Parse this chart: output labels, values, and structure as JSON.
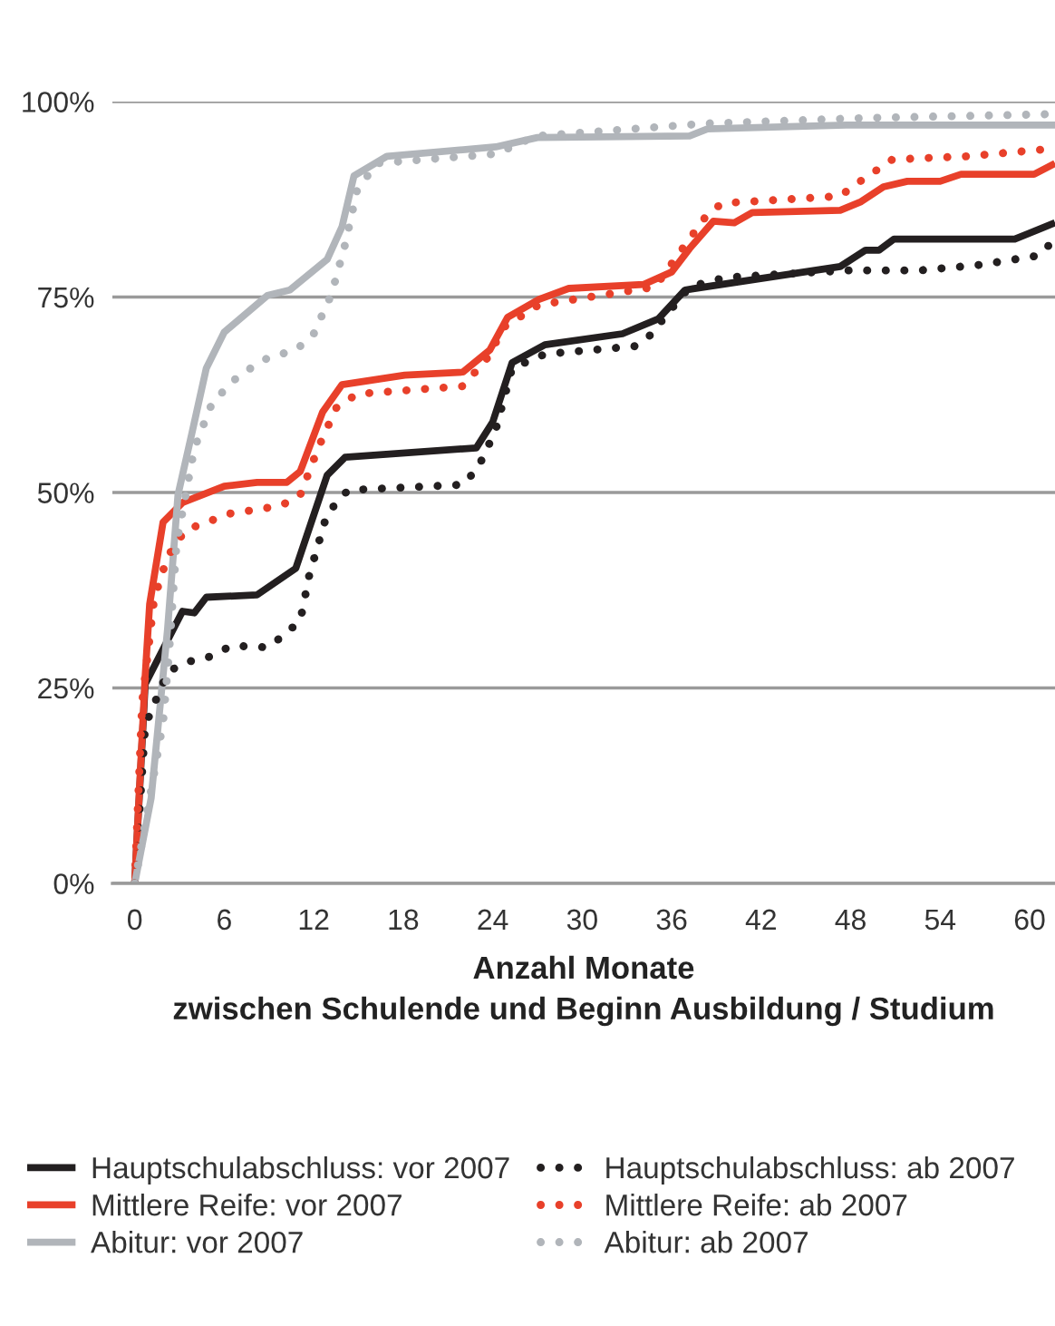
{
  "chart_data": {
    "type": "line",
    "xlabel": "Anzahl Monate\nzwischen Schulende und Beginn Ausbildung / Studium",
    "xlim": [
      -1.5,
      61.7
    ],
    "xticks": [
      0,
      6,
      12,
      18,
      24,
      30,
      36,
      42,
      48,
      54,
      60
    ],
    "ylim": [
      0,
      100
    ],
    "yticks": [
      {
        "value": 0,
        "label": "0%"
      },
      {
        "value": 25,
        "label": "25%"
      },
      {
        "value": 50,
        "label": "50%"
      },
      {
        "value": 75,
        "label": "75%"
      },
      {
        "value": 100,
        "label": "100%"
      }
    ],
    "grid": "y",
    "legend": "bottom",
    "marker": "none",
    "series": [
      {
        "name": "Hauptschulabschluss: vor 2007",
        "color": "#231f20",
        "line_style": "solid",
        "x": [
          0,
          0.7,
          3.2,
          4,
          4.8,
          8.2,
          10.8,
          12.9,
          14.1,
          22.9,
          24,
          25.3,
          27.5,
          32.7,
          35.1,
          36.9,
          47.3,
          49,
          49.9,
          50.9,
          59,
          61.7
        ],
        "values": [
          0,
          25.5,
          34.8,
          34.6,
          36.6,
          36.9,
          40.3,
          52.2,
          54.5,
          55.7,
          59,
          66.6,
          68.9,
          70.3,
          72.2,
          75.9,
          78.9,
          81,
          81,
          82.4,
          82.4,
          84.5
        ]
      },
      {
        "name": "Mittlere Reife: vor 2007",
        "color": "#e8402a",
        "line_style": "solid",
        "x": [
          0,
          0.7,
          1,
          1.9,
          3.2,
          6,
          8.2,
          10.2,
          11.1,
          12.6,
          13.9,
          18.1,
          22,
          23.8,
          25,
          27.1,
          29.1,
          34.1,
          36,
          37.2,
          38.8,
          40.2,
          41.4,
          47.3,
          48.7,
          50.2,
          51.8,
          54,
          55.4,
          60.3,
          61.7
        ],
        "values": [
          0,
          26.5,
          35.7,
          46.2,
          48.7,
          50.8,
          51.3,
          51.3,
          52.7,
          60.3,
          63.8,
          65,
          65.4,
          68.2,
          72.4,
          74.7,
          76.1,
          76.6,
          78.2,
          81.2,
          84.7,
          84.5,
          85.8,
          86.1,
          87.2,
          89.1,
          89.8,
          89.8,
          90.7,
          90.7,
          92.1
        ]
      },
      {
        "name": "Abitur: vor 2007",
        "color": "#b1b5ba",
        "line_style": "solid",
        "x": [
          0,
          1.1,
          2.2,
          2.9,
          3.8,
          4.8,
          6,
          8.9,
          10.4,
          12.9,
          13.9,
          14.7,
          16.9,
          24.2,
          27,
          37.2,
          38.4,
          47.7,
          61.7
        ],
        "values": [
          0,
          10.9,
          32.5,
          49.7,
          57.3,
          65.9,
          70.5,
          75.2,
          75.9,
          79.8,
          84,
          90.5,
          93,
          94.2,
          95.4,
          95.6,
          96.5,
          97,
          97
        ]
      },
      {
        "name": "Hauptschulabschluss: ab 2007",
        "color": "#231f20",
        "line_style": "dotted",
        "x": [
          0,
          0.7,
          2.2,
          3.4,
          4.8,
          6.5,
          8.9,
          9.9,
          11.1,
          11.7,
          12.9,
          14.3,
          22,
          23,
          24.2,
          25.3,
          27.5,
          33.5,
          34.5,
          36,
          37.2,
          39.6,
          47.7,
          52.6,
          56.6,
          60.6,
          61.7
        ],
        "values": [
          0,
          20.2,
          27,
          28.3,
          28.8,
          30.4,
          30.2,
          31.6,
          33.6,
          39.4,
          47.3,
          50.3,
          51,
          53.1,
          58,
          65.9,
          67.7,
          68.7,
          70,
          73.5,
          76.3,
          77.5,
          78.4,
          78.4,
          79.1,
          80.3,
          82.4
        ]
      },
      {
        "name": "Mittlere Reife: ab 2007",
        "color": "#e8402a",
        "line_style": "dotted",
        "x": [
          0,
          0.5,
          1.3,
          2.2,
          3.4,
          6.4,
          9.8,
          11.1,
          12.3,
          13.5,
          14.9,
          22,
          23.6,
          24.8,
          27.1,
          34.9,
          36.2,
          38.4,
          39.4,
          47.3,
          48.1,
          50.8,
          55.8,
          61.7
        ],
        "values": [
          0,
          23.2,
          36.4,
          41.8,
          45.2,
          47.3,
          48.3,
          49.7,
          55.7,
          60.8,
          62.6,
          63.6,
          67.1,
          71.2,
          74,
          76.3,
          79.8,
          85.6,
          87,
          87.9,
          89.1,
          92.6,
          93,
          94
        ]
      },
      {
        "name": "Abitur: ab 2007",
        "color": "#b1b5ba",
        "line_style": "dotted",
        "x": [
          0,
          1.9,
          2.3,
          2.8,
          4,
          5.2,
          7,
          9,
          10.8,
          12,
          13.2,
          14.1,
          14.9,
          16.2,
          24.2,
          26.9,
          38.4,
          49,
          61.7
        ],
        "values": [
          0,
          20.6,
          29.5,
          43.4,
          55.7,
          61.5,
          65,
          67.3,
          68.2,
          70.3,
          75.4,
          81.7,
          88.6,
          92.1,
          93.3,
          95.6,
          97.2,
          97.9,
          98.4
        ]
      }
    ]
  }
}
